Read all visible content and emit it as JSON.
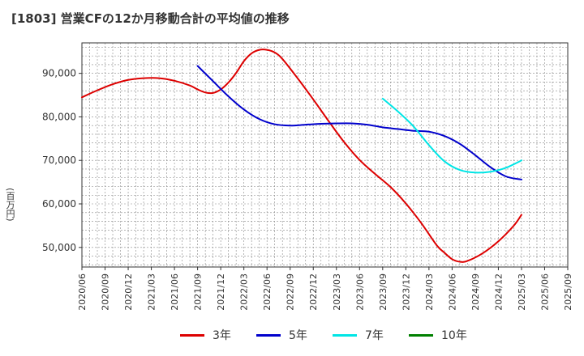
{
  "title": "[1803]  営業CFの12か月移動合計の平均値の推移",
  "y_unit": "(百万円)",
  "colors": {
    "3y": "#dd0000",
    "5y": "#0000cc",
    "7y": "#00e5e5",
    "10y": "#008000",
    "grid": "#888888",
    "axis": "#333333"
  },
  "chart_data": {
    "type": "line",
    "title": "[1803]  営業CFの12か月移動合計の平均値の推移",
    "xlabel": "",
    "ylabel": "(百万円)",
    "xlim": [
      "2020/06",
      "2025/09"
    ],
    "ylim": [
      45500,
      97000
    ],
    "grid": true,
    "legend_position": "bottom",
    "x_ticks": [
      "2020/06",
      "2020/09",
      "2020/12",
      "2021/03",
      "2021/06",
      "2021/09",
      "2021/12",
      "2022/03",
      "2022/06",
      "2022/09",
      "2022/12",
      "2023/03",
      "2023/06",
      "2023/09",
      "2023/12",
      "2024/03",
      "2024/06",
      "2024/09",
      "2024/12",
      "2025/03",
      "2025/06",
      "2025/09"
    ],
    "y_ticks": [
      {
        "value": 50000,
        "label": "50,000"
      },
      {
        "value": 60000,
        "label": "60,000"
      },
      {
        "value": 70000,
        "label": "70,000"
      },
      {
        "value": 80000,
        "label": "80,000"
      },
      {
        "value": 90000,
        "label": "90,000"
      }
    ],
    "series": [
      {
        "name": "3年",
        "key": "3y",
        "points": [
          [
            "2020/06",
            84500
          ],
          [
            "2020/08",
            86100
          ],
          [
            "2020/10",
            87500
          ],
          [
            "2020/12",
            88500
          ],
          [
            "2021/02",
            88900
          ],
          [
            "2021/04",
            88900
          ],
          [
            "2021/06",
            88300
          ],
          [
            "2021/08",
            87200
          ],
          [
            "2021/09",
            86300
          ],
          [
            "2021/10",
            85600
          ],
          [
            "2021/11",
            85500
          ],
          [
            "2021/12",
            86300
          ],
          [
            "2022/01",
            87900
          ],
          [
            "2022/02",
            90100
          ],
          [
            "2022/03",
            92800
          ],
          [
            "2022/04",
            94600
          ],
          [
            "2022/05",
            95400
          ],
          [
            "2022/06",
            95400
          ],
          [
            "2022/07",
            94800
          ],
          [
            "2022/08",
            93300
          ],
          [
            "2022/10",
            88800
          ],
          [
            "2022/12",
            84000
          ],
          [
            "2023/02",
            79000
          ],
          [
            "2023/04",
            74200
          ],
          [
            "2023/06",
            70100
          ],
          [
            "2023/08",
            66900
          ],
          [
            "2023/10",
            63900
          ],
          [
            "2023/12",
            60100
          ],
          [
            "2024/02",
            55600
          ],
          [
            "2024/04",
            50500
          ],
          [
            "2024/05",
            48800
          ],
          [
            "2024/06",
            47300
          ],
          [
            "2024/07",
            46700
          ],
          [
            "2024/08",
            46900
          ],
          [
            "2024/10",
            48700
          ],
          [
            "2024/12",
            51400
          ],
          [
            "2025/02",
            55000
          ],
          [
            "2025/03",
            57500
          ]
        ]
      },
      {
        "name": "5年",
        "key": "5y",
        "points": [
          [
            "2021/09",
            91700
          ],
          [
            "2021/11",
            88200
          ],
          [
            "2022/01",
            84700
          ],
          [
            "2022/03",
            81700
          ],
          [
            "2022/05",
            79500
          ],
          [
            "2022/07",
            78300
          ],
          [
            "2022/09",
            78000
          ],
          [
            "2022/11",
            78200
          ],
          [
            "2023/01",
            78400
          ],
          [
            "2023/03",
            78500
          ],
          [
            "2023/05",
            78500
          ],
          [
            "2023/07",
            78200
          ],
          [
            "2023/09",
            77600
          ],
          [
            "2023/11",
            77200
          ],
          [
            "2024/01",
            76800
          ],
          [
            "2024/03",
            76600
          ],
          [
            "2024/05",
            75600
          ],
          [
            "2024/07",
            73800
          ],
          [
            "2024/09",
            71200
          ],
          [
            "2024/11",
            68400
          ],
          [
            "2025/01",
            66300
          ],
          [
            "2025/03",
            65600
          ]
        ]
      },
      {
        "name": "7年",
        "key": "7y",
        "points": [
          [
            "2023/09",
            84200
          ],
          [
            "2023/11",
            81200
          ],
          [
            "2024/01",
            77800
          ],
          [
            "2024/03",
            73500
          ],
          [
            "2024/05",
            69800
          ],
          [
            "2024/07",
            67800
          ],
          [
            "2024/09",
            67200
          ],
          [
            "2024/11",
            67400
          ],
          [
            "2025/01",
            68300
          ],
          [
            "2025/03",
            70000
          ]
        ]
      },
      {
        "name": "10年",
        "key": "10y",
        "points": []
      }
    ]
  }
}
